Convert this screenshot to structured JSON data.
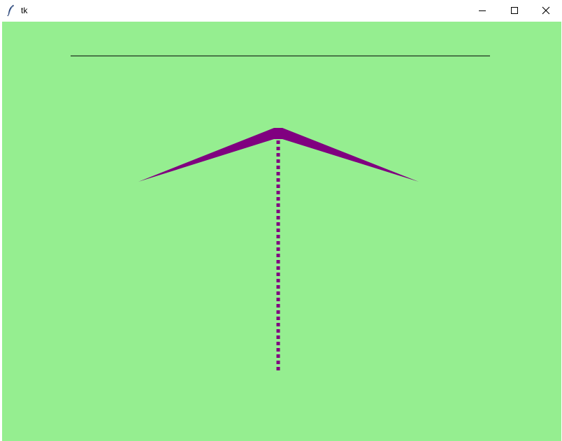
{
  "window": {
    "title": "tk",
    "icons": {
      "app": "feather-icon",
      "minimize": "minimize-icon",
      "maximize": "maximize-icon",
      "close": "close-icon"
    }
  },
  "canvas": {
    "background": "#95ee90",
    "line_color": "#000000",
    "shape_color": "#800080"
  }
}
